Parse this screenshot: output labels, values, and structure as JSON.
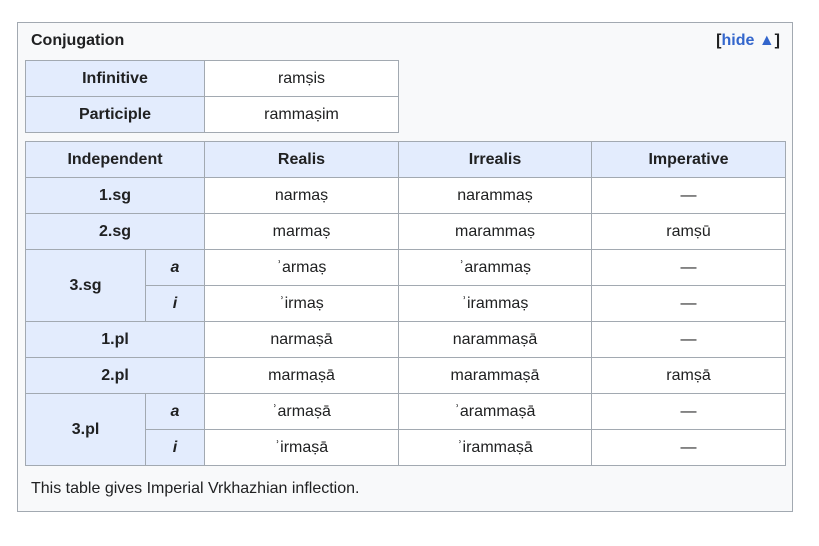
{
  "box": {
    "title": "Conjugation",
    "toggle": {
      "open": "[",
      "link": "hide ▲",
      "close": "]"
    },
    "caption": "This table gives Imperial Vrkhazhian inflection."
  },
  "nonfinite": [
    {
      "label": "Infinitive",
      "value": "ramṣis"
    },
    {
      "label": "Participle",
      "value": "rammaṣim"
    }
  ],
  "finite": {
    "headers": [
      "Independent",
      "Realis",
      "Irrealis",
      "Imperative"
    ],
    "rows": [
      {
        "person": "1.sg",
        "realis": "narmaṣ",
        "irrealis": "narammaṣ",
        "imperative": "—"
      },
      {
        "person": "2.sg",
        "realis": "marmaṣ",
        "irrealis": "marammaṣ",
        "imperative": "ramṣū"
      },
      {
        "person": "3.sg",
        "a": {
          "sub": "a",
          "realis": "ʾarmaṣ",
          "irrealis": "ʾarammaṣ",
          "imperative": "—"
        },
        "i": {
          "sub": "i",
          "realis": "ʾirmaṣ",
          "irrealis": "ʾirammaṣ",
          "imperative": "—"
        }
      },
      {
        "person": "1.pl",
        "realis": "narmaṣā",
        "irrealis": "narammaṣā",
        "imperative": "—"
      },
      {
        "person": "2.pl",
        "realis": "marmaṣā",
        "irrealis": "marammaṣā",
        "imperative": "ramṣā"
      },
      {
        "person": "3.pl",
        "a": {
          "sub": "a",
          "realis": "ʾarmaṣā",
          "irrealis": "ʾarammaṣā",
          "imperative": "—"
        },
        "i": {
          "sub": "i",
          "realis": "ʾirmaṣā",
          "irrealis": "ʾirammaṣā",
          "imperative": "—"
        }
      }
    ]
  }
}
